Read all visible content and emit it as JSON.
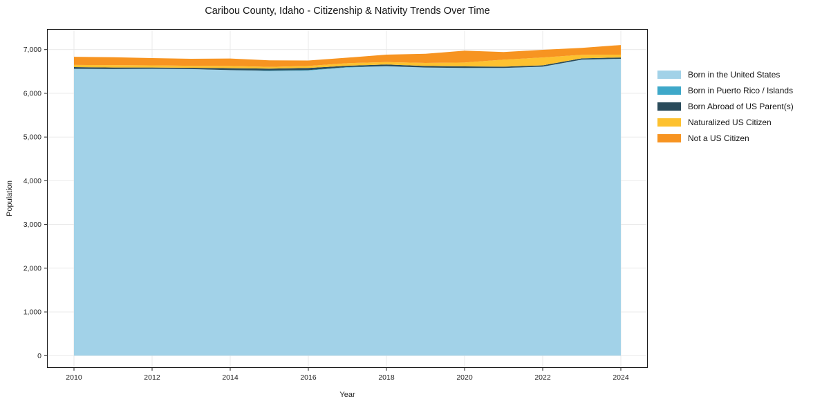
{
  "title": "Caribou County, Idaho - Citizenship & Nativity Trends Over Time",
  "chart_data": {
    "type": "area",
    "stacked": true,
    "title": "Caribou County, Idaho - Citizenship & Nativity Trends Over Time",
    "xlabel": "Year",
    "ylabel": "Population",
    "x": [
      2010,
      2011,
      2012,
      2013,
      2014,
      2015,
      2016,
      2017,
      2018,
      2019,
      2020,
      2021,
      2022,
      2023,
      2024
    ],
    "series": [
      {
        "name": "Born in the United States",
        "color": "#a2d2e8",
        "values": [
          6560,
          6555,
          6560,
          6555,
          6530,
          6510,
          6520,
          6590,
          6620,
          6590,
          6580,
          6580,
          6610,
          6770,
          6790
        ]
      },
      {
        "name": "Born in Puerto Rico / Islands",
        "color": "#3ea8c9",
        "values": [
          0,
          0,
          0,
          0,
          0,
          10,
          10,
          10,
          0,
          0,
          0,
          0,
          0,
          0,
          0
        ]
      },
      {
        "name": "Born Abroad of US Parent(s)",
        "color": "#2a4b5b",
        "values": [
          40,
          35,
          30,
          30,
          45,
          45,
          50,
          30,
          40,
          35,
          35,
          30,
          30,
          30,
          30
        ]
      },
      {
        "name": "Naturalized US Citizen",
        "color": "#fdc12f",
        "values": [
          50,
          55,
          50,
          45,
          50,
          40,
          45,
          60,
          55,
          70,
          90,
          160,
          180,
          80,
          65
        ]
      },
      {
        "name": "Not a US Citizen",
        "color": "#f79421",
        "values": [
          185,
          180,
          165,
          160,
          170,
          150,
          125,
          125,
          170,
          210,
          270,
          175,
          175,
          160,
          220
        ]
      }
    ],
    "x_ticks": [
      2010,
      2012,
      2014,
      2016,
      2018,
      2020,
      2022,
      2024
    ],
    "x_tick_labels": [
      "2010",
      "2012",
      "2014",
      "2016",
      "2018",
      "2020",
      "2022",
      "2024"
    ],
    "y_ticks": [
      0,
      1000,
      2000,
      3000,
      4000,
      5000,
      6000,
      7000
    ],
    "y_tick_labels": [
      "0",
      "1,000",
      "2,000",
      "3,000",
      "4,000",
      "5,000",
      "6,000",
      "7,000"
    ],
    "xlim": [
      2009.31,
      2024.69
    ],
    "ylim": [
      -280,
      7470
    ],
    "grid": true,
    "legend_position": "right",
    "grid_color": "#e7e7e7",
    "spine_color": "#1a1a1a",
    "tick_label_color": "#1f1f1f"
  }
}
